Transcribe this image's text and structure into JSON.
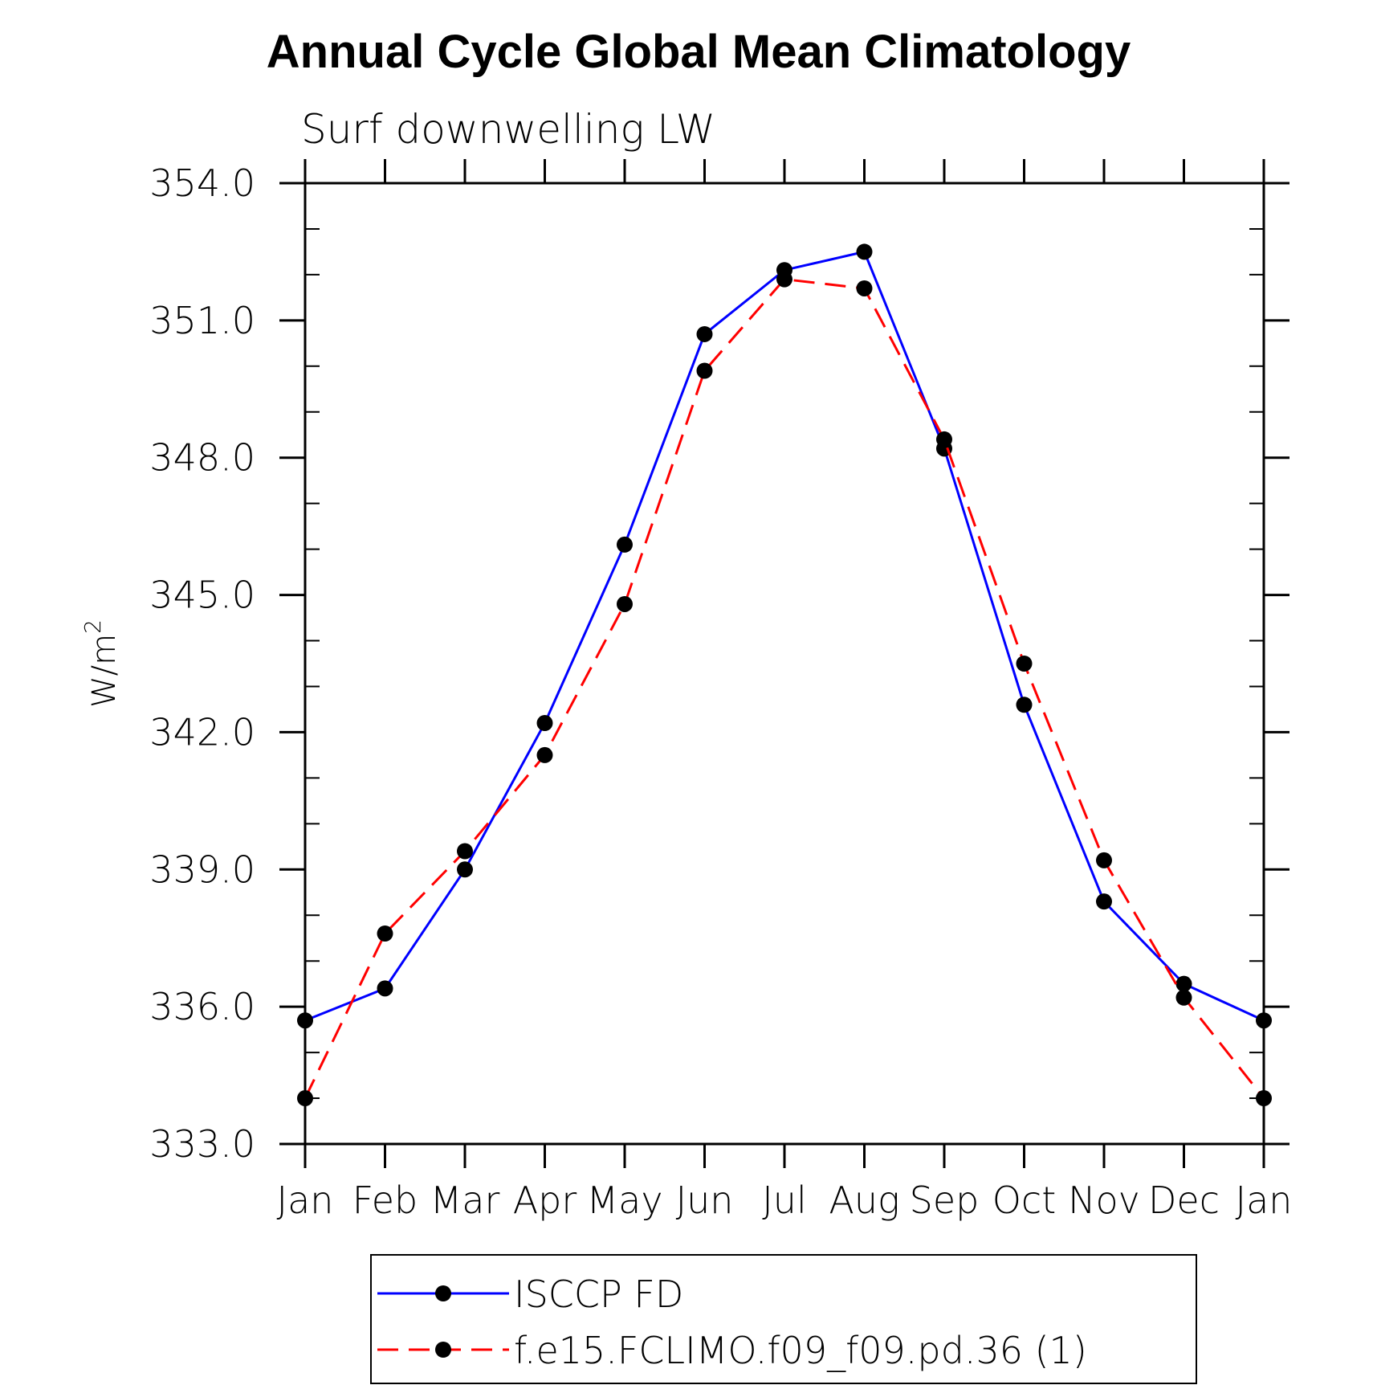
{
  "chart_data": {
    "type": "line",
    "title": "Annual Cycle Global Mean Climatology",
    "subtitle": "Surf downwelling LW",
    "xlabel": "",
    "ylabel": "W/m",
    "ylabel_superscript": "2",
    "categories": [
      "Jan",
      "Feb",
      "Mar",
      "Apr",
      "May",
      "Jun",
      "Jul",
      "Aug",
      "Sep",
      "Oct",
      "Nov",
      "Dec",
      "Jan"
    ],
    "ylim": [
      333.0,
      354.0
    ],
    "y_major_ticks": [
      333.0,
      336.0,
      339.0,
      342.0,
      345.0,
      348.0,
      351.0,
      354.0
    ],
    "y_tick_labels": [
      "333.0",
      "336.0",
      "339.0",
      "342.0",
      "345.0",
      "348.0",
      "351.0",
      "354.0"
    ],
    "y_minor_step": 1.0,
    "legend_position": "bottom-center",
    "series": [
      {
        "name": "ISCCP FD",
        "color": "#0000ff",
        "style": "solid",
        "marker": "filled-circle",
        "values": [
          335.7,
          336.4,
          339.0,
          342.2,
          346.1,
          350.7,
          352.1,
          352.5,
          348.2,
          342.6,
          338.3,
          336.5,
          335.7
        ]
      },
      {
        "name": "f.e15.FCLIMO.f09_f09.pd.36 (1)",
        "color": "#ff0000",
        "style": "dashed",
        "marker": "filled-circle",
        "values": [
          334.0,
          337.6,
          339.4,
          341.5,
          344.8,
          349.9,
          351.9,
          351.7,
          348.4,
          343.5,
          339.2,
          336.2,
          334.0
        ]
      }
    ]
  }
}
